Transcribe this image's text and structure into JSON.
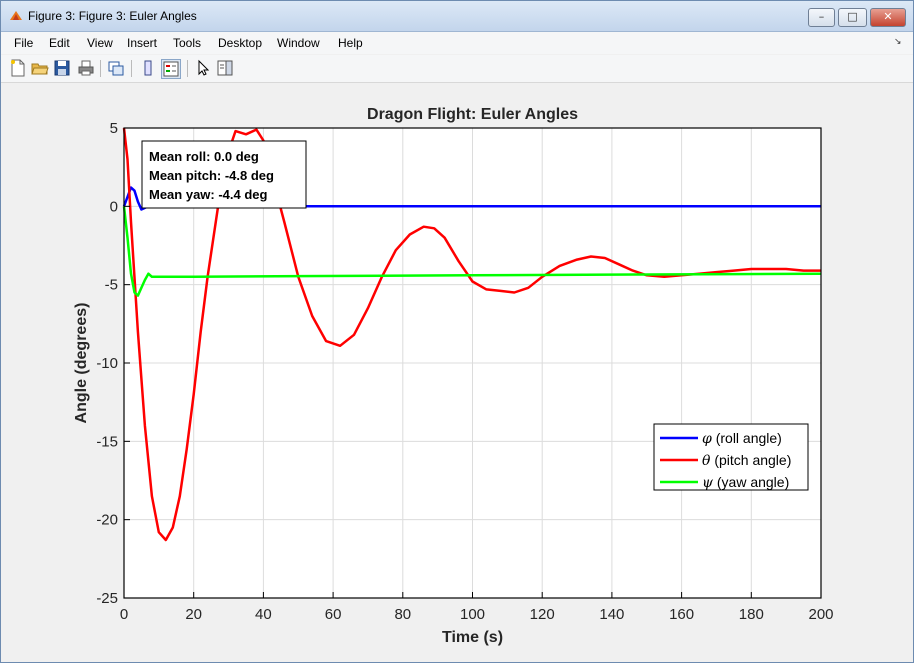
{
  "window": {
    "title": "Figure 3: Figure 3: Euler Angles",
    "minimize": "–",
    "maximize": "□",
    "close": "✕"
  },
  "menu": [
    "File",
    "Edit",
    "View",
    "Insert",
    "Tools",
    "Desktop",
    "Window",
    "Help"
  ],
  "dock_glyph": "↘",
  "toolbar_icons": [
    "new-figure-icon",
    "open-file-icon",
    "save-icon",
    "print-icon",
    "link-plot-icon",
    "colorbar-icon",
    "legend-icon",
    "edit-plot-icon",
    "property-editor-icon"
  ],
  "chart_data": {
    "type": "line",
    "title": "Dragon Flight: Euler Angles",
    "xlabel": "Time (s)",
    "ylabel": "Angle (degrees)",
    "xlim": [
      0,
      200
    ],
    "ylim": [
      -25,
      5
    ],
    "xticks": [
      0,
      20,
      40,
      60,
      80,
      100,
      120,
      140,
      160,
      180,
      200
    ],
    "yticks": [
      5,
      0,
      -5,
      -10,
      -15,
      -20,
      -25
    ],
    "grid": true,
    "legend_position": "right",
    "annotation": [
      "Mean roll: 0.0 deg",
      "Mean pitch: -4.8 deg",
      "Mean yaw: -4.4 deg"
    ],
    "series": [
      {
        "name": "φ (roll angle)",
        "symbol": "φ",
        "label_rest": " (roll angle)",
        "color": "#0000ff",
        "x": [
          0,
          1,
          2,
          3,
          4,
          5,
          6,
          7,
          8,
          10,
          15,
          200
        ],
        "y": [
          0,
          0.6,
          1.2,
          1.0,
          0.3,
          -0.2,
          -0.1,
          0,
          0,
          0,
          0,
          0
        ]
      },
      {
        "name": "θ (pitch angle)",
        "symbol": "θ",
        "label_rest": " (pitch angle)",
        "color": "#ff0000",
        "x": [
          0,
          1,
          2,
          4,
          6,
          8,
          10,
          12,
          14,
          16,
          18,
          20,
          22,
          24,
          26,
          28,
          30,
          32,
          35,
          38,
          40,
          43,
          46,
          50,
          54,
          58,
          62,
          66,
          70,
          74,
          78,
          82,
          86,
          89,
          92,
          96,
          100,
          104,
          108,
          112,
          116,
          120,
          125,
          130,
          134,
          138,
          142,
          146,
          150,
          155,
          160,
          165,
          170,
          175,
          180,
          185,
          190,
          195,
          200
        ],
        "y": [
          5,
          3,
          -1,
          -8,
          -14,
          -18.5,
          -20.8,
          -21.3,
          -20.5,
          -18.5,
          -15.5,
          -12,
          -8,
          -4.5,
          -1.5,
          1.5,
          3.5,
          4.8,
          4.6,
          4.9,
          4.2,
          1.5,
          -1,
          -4.5,
          -7,
          -8.6,
          -8.9,
          -8.2,
          -6.5,
          -4.5,
          -2.8,
          -1.8,
          -1.3,
          -1.4,
          -2,
          -3.5,
          -4.8,
          -5.3,
          -5.4,
          -5.5,
          -5.2,
          -4.5,
          -3.8,
          -3.4,
          -3.2,
          -3.3,
          -3.7,
          -4.1,
          -4.4,
          -4.5,
          -4.4,
          -4.3,
          -4.2,
          -4.1,
          -4,
          -4,
          -4,
          -4.1,
          -4.1
        ]
      },
      {
        "name": "ψ (yaw angle)",
        "symbol": "ψ",
        "label_rest": " (yaw angle)",
        "color": "#00ff00",
        "x": [
          0,
          1,
          2,
          3,
          4,
          5,
          6,
          7,
          8,
          10,
          20,
          50,
          100,
          150,
          200
        ],
        "y": [
          0,
          -2,
          -4.3,
          -5.5,
          -5.7,
          -5.2,
          -4.7,
          -4.3,
          -4.5,
          -4.5,
          -4.5,
          -4.45,
          -4.4,
          -4.35,
          -4.3
        ]
      }
    ]
  }
}
